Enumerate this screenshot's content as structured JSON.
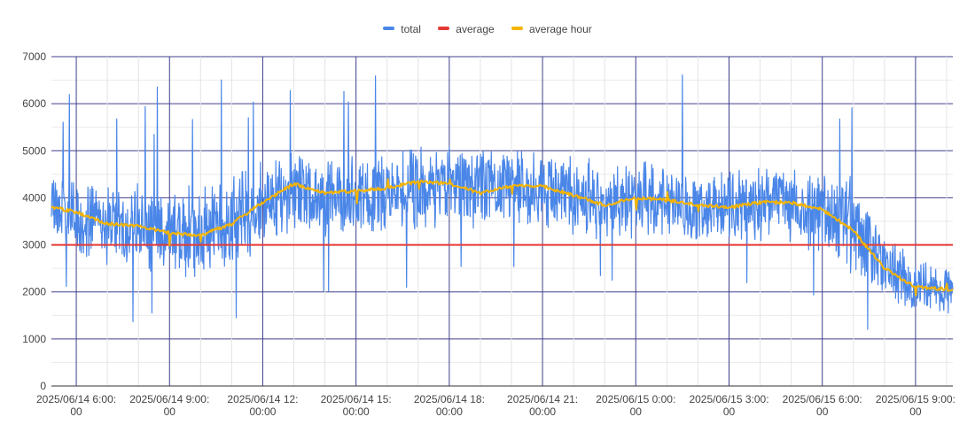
{
  "chart_data": {
    "type": "line",
    "title": "",
    "xlabel": "",
    "ylabel": "",
    "ylim": [
      0,
      7000
    ],
    "y_ticks": [
      0,
      1000,
      2000,
      3000,
      4000,
      5000,
      6000,
      7000
    ],
    "y_tick_labels": [
      "0",
      "1000",
      "2000",
      "3000",
      "4000",
      "5000",
      "6000",
      "7000"
    ],
    "x_range": [
      "2025/06/14 05:12",
      "2025/06/15 10:12"
    ],
    "x_ticks": [
      {
        "time": "2025/06/14 06:00",
        "line1": "2025/06/14 6:00:",
        "line2": "00"
      },
      {
        "time": "2025/06/14 09:00",
        "line1": "2025/06/14 9:00:",
        "line2": "00"
      },
      {
        "time": "2025/06/14 12:00",
        "line1": "2025/06/14 12:",
        "line2": "00:00"
      },
      {
        "time": "2025/06/14 15:00",
        "line1": "2025/06/14 15:",
        "line2": "00:00"
      },
      {
        "time": "2025/06/14 18:00",
        "line1": "2025/06/14 18:",
        "line2": "00:00"
      },
      {
        "time": "2025/06/14 21:00",
        "line1": "2025/06/14 21:",
        "line2": "00:00"
      },
      {
        "time": "2025/06/15 00:00",
        "line1": "2025/06/15 0:00:",
        "line2": "00"
      },
      {
        "time": "2025/06/15 03:00",
        "line1": "2025/06/15 3:00:",
        "line2": "00"
      },
      {
        "time": "2025/06/15 06:00",
        "line1": "2025/06/15 6:00:",
        "line2": "00"
      },
      {
        "time": "2025/06/15 09:00",
        "line1": "2025/06/15 9:00:",
        "line2": "00"
      }
    ],
    "legend_position": "top-center",
    "grid": true,
    "series": [
      {
        "name": "total",
        "color": "#4a86e8",
        "note": "approximate envelope of a noisy high-frequency series",
        "x": [
          "2025/06/14 05:12",
          "2025/06/14 06:00",
          "2025/06/14 07:00",
          "2025/06/14 08:00",
          "2025/06/14 09:00",
          "2025/06/14 10:00",
          "2025/06/14 11:00",
          "2025/06/14 12:00",
          "2025/06/14 13:00",
          "2025/06/14 14:00",
          "2025/06/14 15:00",
          "2025/06/14 16:00",
          "2025/06/14 17:00",
          "2025/06/14 18:00",
          "2025/06/14 19:00",
          "2025/06/14 20:00",
          "2025/06/14 21:00",
          "2025/06/14 22:00",
          "2025/06/14 23:00",
          "2025/06/15 00:00",
          "2025/06/15 01:00",
          "2025/06/15 02:00",
          "2025/06/15 03:00",
          "2025/06/15 04:00",
          "2025/06/15 05:00",
          "2025/06/15 06:00",
          "2025/06/15 07:00",
          "2025/06/15 08:00",
          "2025/06/15 09:00",
          "2025/06/15 10:12"
        ],
        "values": [
          3800,
          3600,
          3450,
          3400,
          3250,
          3250,
          3400,
          3900,
          4100,
          4050,
          4050,
          4100,
          4150,
          4300,
          4200,
          4250,
          4200,
          4050,
          3950,
          4000,
          3900,
          3850,
          3850,
          3900,
          3850,
          3700,
          3350,
          2500,
          2100,
          2050
        ],
        "spread": [
          500,
          550,
          600,
          650,
          650,
          700,
          750,
          600,
          650,
          600,
          600,
          600,
          650,
          600,
          600,
          600,
          600,
          600,
          600,
          600,
          550,
          550,
          550,
          550,
          600,
          650,
          750,
          500,
          400,
          350
        ]
      },
      {
        "name": "average",
        "color": "#e53935",
        "x": [
          "2025/06/14 05:12",
          "2025/06/15 10:12"
        ],
        "values": [
          3000,
          3000
        ]
      },
      {
        "name": "average hour",
        "color": "#f4b400",
        "x": [
          "2025/06/14 05:12",
          "2025/06/14 06:00",
          "2025/06/14 07:00",
          "2025/06/14 08:00",
          "2025/06/14 09:00",
          "2025/06/14 10:00",
          "2025/06/14 11:00",
          "2025/06/14 12:00",
          "2025/06/14 13:00",
          "2025/06/14 14:00",
          "2025/06/14 15:00",
          "2025/06/14 16:00",
          "2025/06/14 17:00",
          "2025/06/14 18:00",
          "2025/06/14 19:00",
          "2025/06/14 20:00",
          "2025/06/14 21:00",
          "2025/06/14 22:00",
          "2025/06/14 23:00",
          "2025/06/15 00:00",
          "2025/06/15 01:00",
          "2025/06/15 02:00",
          "2025/06/15 03:00",
          "2025/06/15 04:00",
          "2025/06/15 05:00",
          "2025/06/15 06:00",
          "2025/06/15 07:00",
          "2025/06/15 08:00",
          "2025/06/15 09:00",
          "2025/06/15 10:12"
        ],
        "values": [
          3800,
          3700,
          3450,
          3400,
          3250,
          3200,
          3450,
          3900,
          4300,
          4100,
          4150,
          4200,
          4350,
          4300,
          4100,
          4250,
          4250,
          4050,
          3850,
          4000,
          3950,
          3850,
          3800,
          3900,
          3900,
          3750,
          3300,
          2500,
          2100,
          2050
        ]
      }
    ]
  }
}
